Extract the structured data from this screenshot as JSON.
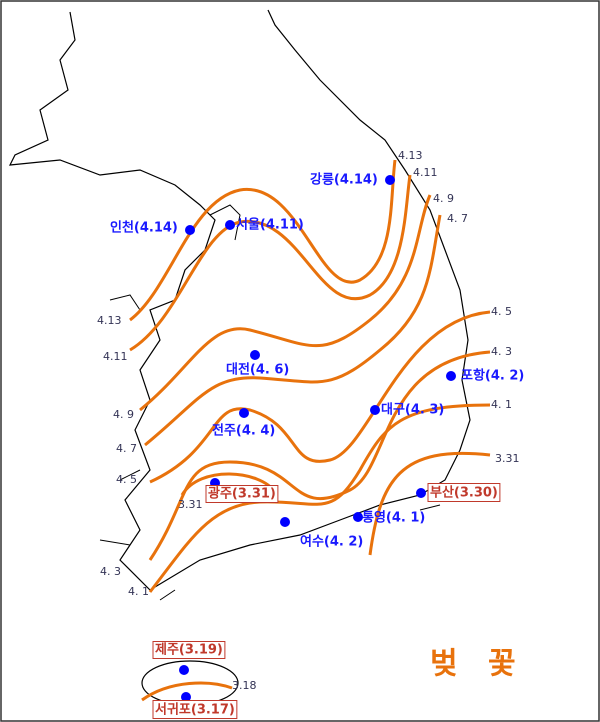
{
  "title": "벚 꽃",
  "cities": [
    {
      "label": "강릉(4.14)"
    },
    {
      "label": "인천(4.14)"
    },
    {
      "label": "서울(4.11)"
    },
    {
      "label": "대전(4. 6)"
    },
    {
      "label": "포항(4. 2)"
    },
    {
      "label": "대구(4. 3)"
    },
    {
      "label": "전주(4. 4)"
    },
    {
      "label": "광주(3.31)"
    },
    {
      "label": "부산(3.30)"
    },
    {
      "label": "통영(4. 1)"
    },
    {
      "label": "여수(4. 2)"
    },
    {
      "label": "제주(3.19)"
    },
    {
      "label": "서귀포(3.17)"
    }
  ],
  "isolines": [
    {
      "label": "4.13"
    },
    {
      "label": "4.11"
    },
    {
      "label": "4. 9"
    },
    {
      "label": "4. 7"
    },
    {
      "label": "4. 5"
    },
    {
      "label": "4. 3"
    },
    {
      "label": "4. 1"
    },
    {
      "label": "3.31"
    },
    {
      "label": "4.13"
    },
    {
      "label": "4.11"
    },
    {
      "label": "4. 9"
    },
    {
      "label": "4. 7"
    },
    {
      "label": "4. 5"
    },
    {
      "label": "4. 3"
    },
    {
      "label": "4. 1"
    },
    {
      "label": "3.31"
    },
    {
      "label": "3.18"
    }
  ]
}
